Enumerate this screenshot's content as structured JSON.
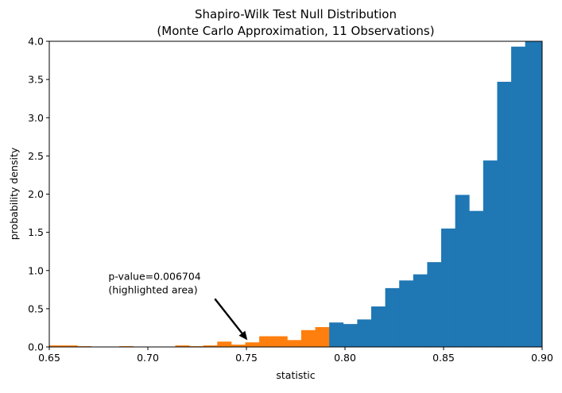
{
  "chart_data": {
    "type": "bar",
    "title": "Shapiro-Wilk Test Null Distribution",
    "subtitle": "(Monte Carlo Approximation, 11 Observations)",
    "xlabel": "statistic",
    "ylabel": "probability density",
    "xlim": [
      0.65,
      0.9
    ],
    "ylim": [
      0,
      4.0
    ],
    "x_ticks": [
      0.65,
      0.7,
      0.75,
      0.8,
      0.85,
      0.9
    ],
    "x_tick_labels": [
      "0.65",
      "0.70",
      "0.75",
      "0.80",
      "0.85",
      "0.90"
    ],
    "y_ticks": [
      0,
      0.5,
      1.0,
      1.5,
      2.0,
      2.5,
      3.0,
      3.5,
      4.0
    ],
    "y_tick_labels": [
      "0.0",
      "0.5",
      "1.0",
      "1.5",
      "2.0",
      "2.5",
      "3.0",
      "3.5",
      "4.0"
    ],
    "grid": false,
    "series": [
      {
        "color": "#ff7f0e",
        "bins": [
          [
            0.65,
            0.6571,
            0.02
          ],
          [
            0.6571,
            0.6642,
            0.02
          ],
          [
            0.6642,
            0.6713,
            0.01
          ],
          [
            0.6713,
            0.6784,
            0.0
          ],
          [
            0.6784,
            0.6855,
            0.0
          ],
          [
            0.6855,
            0.6926,
            0.01
          ],
          [
            0.6926,
            0.6997,
            0.0
          ],
          [
            0.6997,
            0.7068,
            0.0
          ],
          [
            0.7068,
            0.7139,
            0.0
          ],
          [
            0.7139,
            0.721,
            0.02
          ],
          [
            0.721,
            0.7281,
            0.01
          ],
          [
            0.7281,
            0.7352,
            0.02
          ],
          [
            0.7352,
            0.7423,
            0.07
          ],
          [
            0.7423,
            0.7494,
            0.03
          ],
          [
            0.7494,
            0.7565,
            0.06
          ],
          [
            0.7565,
            0.7636,
            0.14
          ],
          [
            0.7636,
            0.7707,
            0.14
          ],
          [
            0.7707,
            0.7778,
            0.09
          ],
          [
            0.7778,
            0.7849,
            0.22
          ],
          [
            0.7849,
            0.792,
            0.26
          ]
        ]
      },
      {
        "color": "#1f77b4",
        "bins": [
          [
            0.792,
            0.7991,
            0.32
          ],
          [
            0.7991,
            0.8062,
            0.3
          ],
          [
            0.8062,
            0.8133,
            0.36
          ],
          [
            0.8133,
            0.8204,
            0.53
          ],
          [
            0.8204,
            0.8275,
            0.77
          ],
          [
            0.8275,
            0.8346,
            0.87
          ],
          [
            0.8346,
            0.8417,
            0.95
          ],
          [
            0.8417,
            0.8488,
            1.11
          ],
          [
            0.8488,
            0.8559,
            1.55
          ],
          [
            0.8559,
            0.863,
            1.99
          ],
          [
            0.863,
            0.8701,
            1.78
          ],
          [
            0.8701,
            0.8772,
            2.44
          ],
          [
            0.8772,
            0.8843,
            3.47
          ],
          [
            0.8843,
            0.8914,
            3.93
          ],
          [
            0.8914,
            0.8985,
            4.01
          ],
          [
            0.8985,
            0.9056,
            4.3
          ]
        ]
      }
    ],
    "annotation": {
      "lines": [
        "p-value=0.006704",
        "(highlighted area)"
      ],
      "text_at": [
        0.68,
        0.88
      ],
      "arrow_from": [
        0.734,
        0.63
      ],
      "arrow_to": [
        0.7505,
        0.09
      ]
    }
  }
}
